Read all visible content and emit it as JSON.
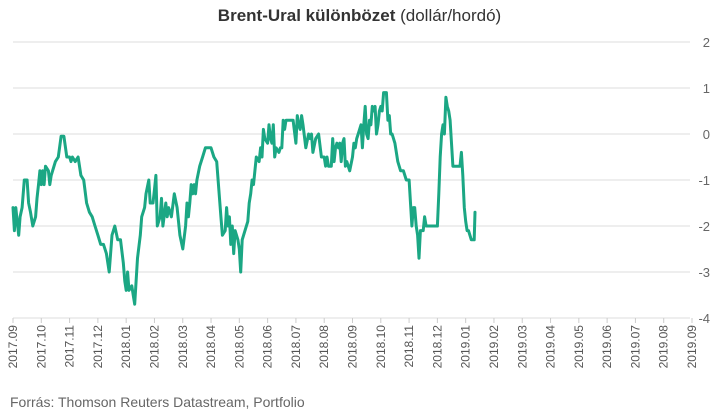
{
  "chart_data": {
    "type": "line",
    "title": "Brent-Ural különbözet",
    "subtitle": "(dollár/hordó)",
    "xlabel": "",
    "ylabel": "",
    "ylim": [
      -4,
      2
    ],
    "y_ticks": [
      2,
      1,
      0,
      -1,
      -2,
      -3,
      -4
    ],
    "y_axis_position": "right",
    "grid": true,
    "legend": "none",
    "x_ticks": [
      "2017.09",
      "2017.10",
      "2017.11",
      "2017.12",
      "2018.01",
      "2018.02",
      "2018.03",
      "2018.04",
      "2018.05",
      "2018.06",
      "2018.07",
      "2018.08",
      "2018.09",
      "2018.10",
      "2018.11",
      "2018.12",
      "2019.01",
      "2019.02",
      "2019.03",
      "2019.04",
      "2019.05",
      "2019.06",
      "2019.07",
      "2019.08",
      "2019.09"
    ],
    "series": [
      {
        "color": "#1ba784",
        "points": [
          [
            0.0,
            -1.6
          ],
          [
            0.05,
            -2.1
          ],
          [
            0.1,
            -1.6
          ],
          [
            0.15,
            -1.9
          ],
          [
            0.2,
            -2.2
          ],
          [
            0.25,
            -1.8
          ],
          [
            0.32,
            -1.6
          ],
          [
            0.4,
            -1.0
          ],
          [
            0.5,
            -1.0
          ],
          [
            0.55,
            -1.5
          ],
          [
            0.62,
            -1.7
          ],
          [
            0.7,
            -2.0
          ],
          [
            0.8,
            -1.8
          ],
          [
            0.85,
            -1.4
          ],
          [
            0.9,
            -1.1
          ],
          [
            0.95,
            -0.8
          ],
          [
            1.0,
            -1.1
          ],
          [
            1.05,
            -0.8
          ],
          [
            1.1,
            -1.1
          ],
          [
            1.15,
            -0.7
          ],
          [
            1.25,
            -0.8
          ],
          [
            1.3,
            -1.1
          ],
          [
            1.35,
            -0.9
          ],
          [
            1.4,
            -0.8
          ],
          [
            1.5,
            -0.6
          ],
          [
            1.6,
            -0.5
          ],
          [
            1.7,
            -0.05
          ],
          [
            1.8,
            -0.05
          ],
          [
            1.9,
            -0.5
          ],
          [
            2.0,
            -0.5
          ],
          [
            2.05,
            -0.6
          ],
          [
            2.1,
            -0.5
          ],
          [
            2.2,
            -0.6
          ],
          [
            2.3,
            -0.5
          ],
          [
            2.4,
            -0.9
          ],
          [
            2.5,
            -1.0
          ],
          [
            2.6,
            -1.5
          ],
          [
            2.7,
            -1.7
          ],
          [
            2.8,
            -1.8
          ],
          [
            2.9,
            -2.0
          ],
          [
            3.0,
            -2.2
          ],
          [
            3.1,
            -2.4
          ],
          [
            3.2,
            -2.4
          ],
          [
            3.3,
            -2.6
          ],
          [
            3.4,
            -3.0
          ],
          [
            3.5,
            -2.2
          ],
          [
            3.6,
            -2.0
          ],
          [
            3.7,
            -2.3
          ],
          [
            3.8,
            -2.3
          ],
          [
            3.9,
            -2.8
          ],
          [
            3.95,
            -3.2
          ],
          [
            4.0,
            -3.4
          ],
          [
            4.05,
            -3.0
          ],
          [
            4.1,
            -3.4
          ],
          [
            4.2,
            -3.3
          ],
          [
            4.25,
            -3.5
          ],
          [
            4.3,
            -3.7
          ],
          [
            4.35,
            -3.2
          ],
          [
            4.4,
            -2.7
          ],
          [
            4.5,
            -2.2
          ],
          [
            4.55,
            -1.8
          ],
          [
            4.65,
            -1.6
          ],
          [
            4.7,
            -1.3
          ],
          [
            4.8,
            -1.0
          ],
          [
            4.85,
            -1.5
          ],
          [
            4.95,
            -1.5
          ],
          [
            5.0,
            -1.2
          ],
          [
            5.05,
            -0.9
          ],
          [
            5.1,
            -2.0
          ],
          [
            5.2,
            -1.8
          ],
          [
            5.25,
            -1.4
          ],
          [
            5.3,
            -2.0
          ],
          [
            5.4,
            -1.5
          ],
          [
            5.45,
            -1.8
          ],
          [
            5.5,
            -1.6
          ],
          [
            5.6,
            -1.8
          ],
          [
            5.7,
            -1.3
          ],
          [
            5.8,
            -1.6
          ],
          [
            5.9,
            -2.2
          ],
          [
            6.0,
            -2.5
          ],
          [
            6.1,
            -2.0
          ],
          [
            6.15,
            -1.5
          ],
          [
            6.2,
            -1.8
          ],
          [
            6.25,
            -1.5
          ],
          [
            6.3,
            -1.1
          ],
          [
            6.35,
            -1.3
          ],
          [
            6.4,
            -1.1
          ],
          [
            6.45,
            -1.3
          ],
          [
            6.5,
            -1.0
          ],
          [
            6.6,
            -0.7
          ],
          [
            6.7,
            -0.5
          ],
          [
            6.8,
            -0.3
          ],
          [
            7.0,
            -0.3
          ],
          [
            7.1,
            -0.5
          ],
          [
            7.2,
            -0.6
          ],
          [
            7.25,
            -1.0
          ],
          [
            7.3,
            -1.4
          ],
          [
            7.35,
            -1.8
          ],
          [
            7.4,
            -2.2
          ],
          [
            7.5,
            -2.1
          ],
          [
            7.55,
            -1.6
          ],
          [
            7.6,
            -2.0
          ],
          [
            7.65,
            -1.8
          ],
          [
            7.7,
            -2.4
          ],
          [
            7.75,
            -2.0
          ],
          [
            7.8,
            -2.6
          ],
          [
            7.85,
            -2.1
          ],
          [
            7.9,
            -2.2
          ],
          [
            7.95,
            -2.3
          ],
          [
            8.0,
            -2.5
          ],
          [
            8.05,
            -3.0
          ],
          [
            8.1,
            -2.3
          ],
          [
            8.2,
            -2.1
          ],
          [
            8.3,
            -1.9
          ],
          [
            8.35,
            -1.5
          ],
          [
            8.4,
            -1.3
          ],
          [
            8.45,
            -1.0
          ],
          [
            8.5,
            -1.1
          ],
          [
            8.55,
            -0.8
          ],
          [
            8.6,
            -0.5
          ],
          [
            8.7,
            -0.6
          ],
          [
            8.75,
            -0.3
          ],
          [
            8.8,
            -0.5
          ],
          [
            8.85,
            0.1
          ],
          [
            8.9,
            -0.1
          ],
          [
            9.0,
            -0.2
          ],
          [
            9.05,
            0.2
          ],
          [
            9.1,
            -0.1
          ],
          [
            9.15,
            -0.2
          ],
          [
            9.2,
            0.2
          ],
          [
            9.25,
            -0.5
          ],
          [
            9.3,
            -0.3
          ],
          [
            9.4,
            -0.4
          ],
          [
            9.45,
            -0.3
          ],
          [
            9.5,
            -0.3
          ],
          [
            9.55,
            0.3
          ],
          [
            9.6,
            0.1
          ],
          [
            9.65,
            0.3
          ],
          [
            9.8,
            0.3
          ],
          [
            9.9,
            0.3
          ],
          [
            10.0,
            -0.2
          ],
          [
            10.05,
            0.4
          ],
          [
            10.1,
            0.2
          ],
          [
            10.15,
            0.1
          ],
          [
            10.2,
            0.4
          ],
          [
            10.25,
            0.2
          ],
          [
            10.35,
            -0.3
          ],
          [
            10.45,
            0.0
          ],
          [
            10.5,
            -0.1
          ],
          [
            10.55,
            0.0
          ],
          [
            10.6,
            -0.4
          ],
          [
            10.7,
            -0.1
          ],
          [
            10.8,
            0.0
          ],
          [
            10.9,
            -0.5
          ],
          [
            11.0,
            -0.5
          ],
          [
            11.05,
            -0.7
          ],
          [
            11.1,
            -0.5
          ],
          [
            11.15,
            -0.7
          ],
          [
            11.25,
            -0.7
          ],
          [
            11.3,
            -0.1
          ],
          [
            11.35,
            -0.6
          ],
          [
            11.4,
            -0.3
          ],
          [
            11.45,
            -0.2
          ],
          [
            11.5,
            -0.3
          ],
          [
            11.55,
            -0.2
          ],
          [
            11.6,
            -0.6
          ],
          [
            11.65,
            -0.2
          ],
          [
            11.7,
            -0.1
          ],
          [
            11.75,
            -0.7
          ],
          [
            11.8,
            -0.6
          ],
          [
            11.9,
            -0.8
          ],
          [
            12.0,
            -0.5
          ],
          [
            12.05,
            -0.2
          ],
          [
            12.1,
            -0.3
          ],
          [
            12.15,
            -0.1
          ],
          [
            12.2,
            0.0
          ],
          [
            12.3,
            0.2
          ],
          [
            12.35,
            -0.3
          ],
          [
            12.4,
            0.2
          ],
          [
            12.45,
            0.6
          ],
          [
            12.5,
            0.0
          ],
          [
            12.55,
            -0.1
          ],
          [
            12.6,
            0.3
          ],
          [
            12.65,
            0.2
          ],
          [
            12.7,
            0.6
          ],
          [
            12.75,
            0.5
          ],
          [
            12.8,
            0.6
          ],
          [
            12.85,
            0.0
          ],
          [
            12.9,
            0.2
          ],
          [
            12.95,
            0.5
          ],
          [
            13.0,
            0.6
          ],
          [
            13.05,
            0.5
          ],
          [
            13.1,
            0.9
          ],
          [
            13.2,
            0.9
          ],
          [
            13.25,
            0.3
          ],
          [
            13.3,
            0.4
          ],
          [
            13.35,
            0.0
          ],
          [
            13.4,
            0.0
          ],
          [
            13.5,
            -0.2
          ],
          [
            13.6,
            -0.6
          ],
          [
            13.7,
            -0.8
          ],
          [
            13.8,
            -0.8
          ],
          [
            13.9,
            -1.0
          ],
          [
            14.0,
            -1.0
          ],
          [
            14.1,
            -2.0
          ],
          [
            14.15,
            -1.6
          ],
          [
            14.2,
            -1.6
          ],
          [
            14.25,
            -2.0
          ],
          [
            14.3,
            -2.2
          ],
          [
            14.35,
            -2.7
          ],
          [
            14.4,
            -2.1
          ],
          [
            14.5,
            -2.1
          ],
          [
            14.55,
            -1.8
          ],
          [
            14.6,
            -2.0
          ],
          [
            14.7,
            -2.0
          ],
          [
            14.8,
            -2.0
          ],
          [
            15.0,
            -2.0
          ],
          [
            15.05,
            -1.3
          ],
          [
            15.1,
            -0.5
          ],
          [
            15.15,
            0.0
          ],
          [
            15.2,
            0.2
          ],
          [
            15.25,
            0.0
          ],
          [
            15.3,
            0.8
          ],
          [
            15.35,
            0.6
          ],
          [
            15.4,
            0.5
          ],
          [
            15.45,
            0.3
          ],
          [
            15.5,
            -0.2
          ],
          [
            15.55,
            -0.7
          ],
          [
            15.6,
            -0.7
          ],
          [
            15.7,
            -0.7
          ],
          [
            15.8,
            -0.7
          ],
          [
            15.85,
            -0.4
          ],
          [
            15.9,
            -0.9
          ],
          [
            15.95,
            -1.6
          ],
          [
            16.0,
            -1.9
          ],
          [
            16.05,
            -2.1
          ],
          [
            16.1,
            -2.1
          ],
          [
            16.15,
            -2.2
          ],
          [
            16.2,
            -2.3
          ],
          [
            16.3,
            -2.3
          ],
          [
            16.33,
            -1.7
          ]
        ]
      }
    ]
  },
  "source": "Forrás: Thomson Reuters Datastream, Portfolio"
}
